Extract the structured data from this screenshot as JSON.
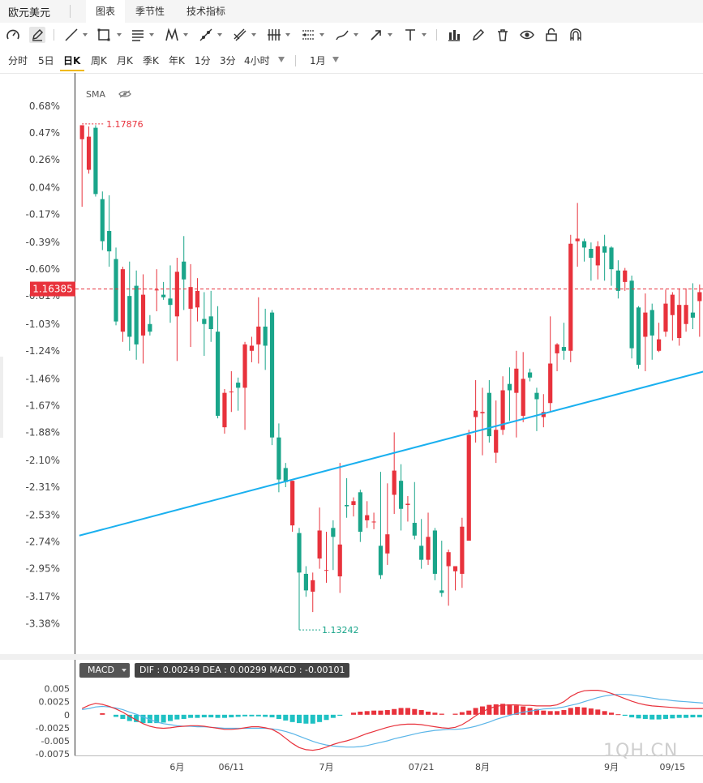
{
  "header": {
    "symbol": "欧元美元",
    "tabs": [
      {
        "label": "图表",
        "active": true
      },
      {
        "label": "季节性",
        "active": false
      },
      {
        "label": "技术指标",
        "active": false
      }
    ]
  },
  "toolbar": {
    "tools": [
      "gauge-icon",
      "pencil-icon",
      "line-icon",
      "rectangle-icon",
      "parallel-lines-icon",
      "pattern-icon",
      "trend-line-icon",
      "pitchfork-icon",
      "fibonacci-icon",
      "channel-icon",
      "brush-icon",
      "arrow-icon",
      "text-icon",
      "bar-chart-icon",
      "edit-icon",
      "trash-icon",
      "eye-icon",
      "lock-icon",
      "magnet-icon"
    ]
  },
  "periods": {
    "items": [
      "分时",
      "5日",
      "日K",
      "周K",
      "月K",
      "季K",
      "年K",
      "1分",
      "3分",
      "4小时"
    ],
    "active": "日K",
    "range": "1月"
  },
  "indicator": {
    "label": "SMA",
    "icon": "eye-hidden-icon"
  },
  "macd_panel": {
    "indicator": "MACD",
    "values_text": "DIF : 0.00249   DEA : 0.00299   MACD : -0.00101"
  },
  "watermark": "1QH.CN",
  "colors": {
    "up": "#e8323c",
    "down": "#1aa58a",
    "trend_line": "#1ab0ef",
    "dif": "#e8323c",
    "dea": "#5ab5e8",
    "current_price": "#e8323c"
  },
  "chart_data": [
    {
      "type": "candlestick",
      "y_tick_labels": [
        "0.68%",
        "0.47%",
        "0.26%",
        "0.04%",
        "-0.17%",
        "-0.39%",
        "-0.60%",
        "-0.81%",
        "-1.03%",
        "-1.24%",
        "-1.46%",
        "-1.67%",
        "-1.88%",
        "-2.10%",
        "-2.31%",
        "-2.53%",
        "-2.74%",
        "-2.95%",
        "-3.17%",
        "-3.38%"
      ],
      "y_ticks": [
        0.68,
        0.47,
        0.26,
        0.04,
        -0.17,
        -0.39,
        -0.6,
        -0.81,
        -1.03,
        -1.24,
        -1.46,
        -1.67,
        -1.88,
        -2.1,
        -2.31,
        -2.53,
        -2.74,
        -2.95,
        -3.17,
        -3.38
      ],
      "ylim": [
        -3.62,
        0.94
      ],
      "x_tick_labels": [
        "6月",
        "06/11",
        "7月",
        "07/21",
        "8月",
        "9月",
        "09/15"
      ],
      "x_tick_index": [
        14,
        22,
        36,
        50,
        59,
        78,
        87
      ],
      "n_slots": 92,
      "current_price": {
        "label": "1.16385",
        "value": -0.755
      },
      "max_marker": {
        "label": "1.17876",
        "index": 0,
        "value": 0.54
      },
      "min_marker": {
        "label": "1.13242",
        "index": 32,
        "value": -3.43
      },
      "trend_line": {
        "from": {
          "index": -0.4,
          "value": -2.69
        },
        "to": {
          "index": 91.8,
          "value": -1.4
        }
      },
      "candles": [
        [
          0.42,
          0.53,
          0.53,
          -0.11
        ],
        [
          0.18,
          0.44,
          0.52,
          0.15
        ],
        [
          0.51,
          -0.01,
          0.53,
          -0.03
        ],
        [
          -0.05,
          -0.38,
          0.01,
          -0.45
        ],
        [
          -0.3,
          -0.46,
          -0.02,
          -0.58
        ],
        [
          -0.52,
          -1.01,
          -0.43,
          -1.04
        ],
        [
          -1.09,
          -0.6,
          -0.58,
          -1.17
        ],
        [
          -0.81,
          -1.13,
          -0.54,
          -1.24
        ],
        [
          -0.73,
          -1.19,
          -0.61,
          -1.31
        ],
        [
          -1.12,
          -0.8,
          -0.64,
          -1.34
        ],
        [
          -1.03,
          -1.09,
          -0.96,
          -1.12
        ],
        [
          -0.76,
          -0.76,
          -0.6,
          -0.93
        ],
        [
          -0.8,
          -0.82,
          -0.7,
          -0.84
        ],
        [
          -0.83,
          -0.88,
          -0.57,
          -1.02
        ],
        [
          -0.97,
          -0.62,
          -0.51,
          -1.32
        ],
        [
          -0.54,
          -0.68,
          -0.34,
          -0.92
        ],
        [
          -0.91,
          -0.74,
          -0.56,
          -1.21
        ],
        [
          -0.9,
          -0.77,
          -0.67,
          -1.01
        ],
        [
          -0.99,
          -1.03,
          -0.78,
          -1.28
        ],
        [
          -0.97,
          -1.07,
          -0.77,
          -1.17
        ],
        [
          -1.09,
          -1.75,
          -0.89,
          -1.77
        ],
        [
          -1.84,
          -1.57,
          -1.54,
          -1.89
        ],
        [
          -1.56,
          -1.56,
          -1.4,
          -1.72
        ],
        [
          -1.49,
          -1.53,
          -1.45,
          -1.71
        ],
        [
          -1.53,
          -1.19,
          -1.17,
          -1.86
        ],
        [
          -1.24,
          -1.2,
          -1.13,
          -1.33
        ],
        [
          -1.19,
          -1.05,
          -0.82,
          -1.34
        ],
        [
          -1.05,
          -1.2,
          -0.91,
          -1.39
        ],
        [
          -0.94,
          -1.92,
          -0.92,
          -1.98
        ],
        [
          -1.92,
          -2.25,
          -1.81,
          -2.35
        ],
        [
          -2.16,
          -2.27,
          -2.12,
          -2.31
        ],
        [
          -2.61,
          -2.26,
          -2.26,
          -2.66
        ],
        [
          -2.67,
          -2.98,
          -2.63,
          -3.43
        ],
        [
          -2.99,
          -3.12,
          -2.93,
          -3.17
        ],
        [
          -3.13,
          -3.04,
          -2.98,
          -3.29
        ],
        [
          -2.87,
          -2.65,
          -2.47,
          -2.95
        ],
        [
          -2.96,
          -2.96,
          -2.66,
          -3.06
        ],
        [
          -2.63,
          -2.7,
          -2.57,
          -2.96
        ],
        [
          -3.01,
          -2.76,
          -2.12,
          -3.14
        ],
        [
          -2.45,
          -2.46,
          -2.24,
          -2.55
        ],
        [
          -2.45,
          -2.42,
          -2.39,
          -2.54
        ],
        [
          -2.35,
          -2.66,
          -2.33,
          -2.74
        ],
        [
          -2.57,
          -2.53,
          -2.42,
          -2.63
        ],
        [
          -2.58,
          -2.58,
          -2.51,
          -2.64
        ],
        [
          -2.77,
          -3.0,
          -2.19,
          -3.03
        ],
        [
          -2.83,
          -2.68,
          -2.28,
          -2.92
        ],
        [
          -2.37,
          -2.18,
          -1.88,
          -2.52
        ],
        [
          -2.26,
          -2.48,
          -2.13,
          -2.65
        ],
        [
          -2.45,
          -2.44,
          -2.38,
          -2.58
        ],
        [
          -2.59,
          -2.69,
          -2.27,
          -2.72
        ],
        [
          -2.77,
          -2.88,
          -2.56,
          -2.95
        ],
        [
          -2.88,
          -2.7,
          -2.51,
          -2.92
        ],
        [
          -2.65,
          -2.99,
          -2.63,
          -3.04
        ],
        [
          -3.12,
          -3.14,
          -2.73,
          -3.17
        ],
        [
          -2.93,
          -2.82,
          -2.8,
          -3.24
        ],
        [
          -2.97,
          -2.93,
          -2.95,
          -3.12
        ],
        [
          -2.99,
          -2.62,
          -2.55,
          -3.1
        ],
        [
          -2.73,
          -1.9,
          -1.86,
          -2.73
        ],
        [
          -1.76,
          -1.71,
          -1.47,
          -1.96
        ],
        [
          -1.73,
          -1.72,
          -1.53,
          -2.06
        ],
        [
          -1.57,
          -1.91,
          -1.47,
          -1.96
        ],
        [
          -2.04,
          -1.86,
          -1.63,
          -2.12
        ],
        [
          -1.86,
          -1.55,
          -1.44,
          -1.9
        ],
        [
          -1.5,
          -1.55,
          -1.37,
          -1.79
        ],
        [
          -1.57,
          -1.38,
          -1.24,
          -1.92
        ],
        [
          -1.75,
          -1.46,
          -1.25,
          -1.8
        ],
        [
          -1.41,
          -1.45,
          -1.38,
          -1.48
        ],
        [
          -1.57,
          -1.62,
          -1.53,
          -1.87
        ],
        [
          -1.76,
          -1.72,
          -1.58,
          -1.84
        ],
        [
          -1.65,
          -1.34,
          -0.97,
          -1.72
        ],
        [
          -1.26,
          -1.19,
          -1.18,
          -1.4
        ],
        [
          -1.21,
          -1.24,
          -1.02,
          -1.31
        ],
        [
          -1.24,
          -0.4,
          -0.33,
          -1.33
        ],
        [
          -0.38,
          -0.36,
          -0.08,
          -0.58
        ],
        [
          -0.38,
          -0.43,
          -0.36,
          -0.54
        ],
        [
          -0.44,
          -0.51,
          -0.39,
          -0.69
        ],
        [
          -0.57,
          -0.42,
          -0.38,
          -0.68
        ],
        [
          -0.42,
          -0.47,
          -0.33,
          -0.69
        ],
        [
          -0.43,
          -0.6,
          -0.42,
          -0.73
        ],
        [
          -0.61,
          -0.77,
          -0.53,
          -0.83
        ],
        [
          -0.7,
          -0.61,
          -0.59,
          -0.77
        ],
        [
          -0.69,
          -1.22,
          -0.65,
          -1.3
        ],
        [
          -0.9,
          -1.35,
          -0.89,
          -1.38
        ],
        [
          -1.13,
          -0.94,
          -0.79,
          -1.4
        ],
        [
          -0.92,
          -1.12,
          -0.87,
          -1.31
        ],
        [
          -1.24,
          -1.15,
          -1.02,
          -1.25
        ],
        [
          -1.09,
          -0.87,
          -0.76,
          -1.13
        ],
        [
          -0.96,
          -0.8,
          -0.78,
          -1.16
        ],
        [
          -1.14,
          -0.88,
          -0.75,
          -1.2
        ],
        [
          -1.03,
          -0.88,
          -0.75,
          -1.09
        ],
        [
          -0.94,
          -0.98,
          -0.71,
          -1.07
        ],
        [
          -0.85,
          -0.78,
          -0.72,
          -1.13
        ],
        [
          -0.79,
          -0.79,
          -0.58,
          -0.91
        ],
        [
          -0.85,
          -0.85,
          -0.75,
          -0.97
        ]
      ]
    },
    {
      "type": "bar+line",
      "indicator": "MACD",
      "y_tick_labels": [
        "0.005",
        "0.0025",
        "0",
        "-0.0025",
        "-0.005",
        "-0.0075"
      ],
      "y_ticks": [
        0.005,
        0.0025,
        0,
        -0.0025,
        -0.005,
        -0.0075
      ],
      "ylim": [
        -0.0078,
        0.0065
      ],
      "histogram": [
        0.0,
        0.0,
        0.0,
        0.0003,
        0.0,
        -0.0004,
        -0.0008,
        -0.0012,
        -0.0014,
        -0.0016,
        -0.0016,
        -0.0016,
        -0.0015,
        -0.0012,
        -0.0009,
        -0.0008,
        -0.0006,
        -0.0006,
        -0.0005,
        -0.0005,
        -0.0006,
        -0.0006,
        -0.0005,
        -0.0004,
        -0.0003,
        -0.0003,
        -0.0003,
        -0.0004,
        -0.0005,
        -0.0008,
        -0.0011,
        -0.0014,
        -0.0016,
        -0.0017,
        -0.0017,
        -0.0014,
        -0.001,
        -0.0006,
        -0.0002,
        0.0,
        0.0004,
        0.0006,
        0.0007,
        0.0008,
        0.0008,
        0.0009,
        0.0011,
        0.0013,
        0.0013,
        0.0011,
        0.0009,
        0.0006,
        0.0004,
        0.0002,
        0.0,
        0.0002,
        0.0005,
        0.0008,
        0.0013,
        0.0016,
        0.0019,
        0.002,
        0.0021,
        0.002,
        0.0018,
        0.0016,
        0.0013,
        0.0011,
        0.0008,
        0.0007,
        0.0007,
        0.0009,
        0.0013,
        0.0015,
        0.0014,
        0.0012,
        0.001,
        0.0007,
        0.0004,
        0.0001,
        -0.0002,
        -0.0005,
        -0.0007,
        -0.0008,
        -0.0009,
        -0.0009,
        -0.0008,
        -0.0007,
        -0.0006,
        -0.0006,
        -0.0005,
        -0.0005,
        -0.0004
      ],
      "dif": [
        0.0012,
        0.0018,
        0.0022,
        0.002,
        0.0016,
        0.0011,
        0.0005,
        -0.0003,
        -0.001,
        -0.0017,
        -0.0022,
        -0.0025,
        -0.0026,
        -0.0025,
        -0.0023,
        -0.0022,
        -0.0021,
        -0.0021,
        -0.0022,
        -0.0024,
        -0.0026,
        -0.0028,
        -0.0028,
        -0.0027,
        -0.0025,
        -0.0023,
        -0.0023,
        -0.0025,
        -0.0028,
        -0.0035,
        -0.0045,
        -0.0055,
        -0.0063,
        -0.0067,
        -0.0068,
        -0.0066,
        -0.0062,
        -0.0057,
        -0.0053,
        -0.005,
        -0.0046,
        -0.0041,
        -0.0036,
        -0.0032,
        -0.0028,
        -0.0024,
        -0.0021,
        -0.0019,
        -0.0018,
        -0.0018,
        -0.0019,
        -0.0021,
        -0.0023,
        -0.0025,
        -0.0026,
        -0.0024,
        -0.0019,
        -0.0011,
        -0.0002,
        0.0006,
        0.0012,
        0.0016,
        0.0018,
        0.0019,
        0.0019,
        0.0018,
        0.0018,
        0.0017,
        0.0017,
        0.0017,
        0.0019,
        0.0025,
        0.0035,
        0.0042,
        0.0046,
        0.0047,
        0.0047,
        0.0045,
        0.0041,
        0.0036,
        0.0031,
        0.0026,
        0.0022,
        0.0019,
        0.0017,
        0.0016,
        0.0015,
        0.0014,
        0.0013,
        0.0012,
        0.0012,
        0.0012,
        0.0012
      ],
      "dea": [
        0.001,
        0.0012,
        0.0015,
        0.0016,
        0.0015,
        0.0013,
        0.001,
        0.0005,
        0.0001,
        -0.0004,
        -0.0009,
        -0.0014,
        -0.0017,
        -0.0019,
        -0.0021,
        -0.0022,
        -0.0022,
        -0.0023,
        -0.0023,
        -0.0024,
        -0.0025,
        -0.0026,
        -0.0026,
        -0.0026,
        -0.0026,
        -0.0026,
        -0.0026,
        -0.0026,
        -0.0027,
        -0.0029,
        -0.0032,
        -0.0036,
        -0.0041,
        -0.0046,
        -0.0051,
        -0.0055,
        -0.0058,
        -0.006,
        -0.0061,
        -0.0062,
        -0.0062,
        -0.0061,
        -0.0059,
        -0.0056,
        -0.0053,
        -0.005,
        -0.0046,
        -0.0043,
        -0.004,
        -0.0037,
        -0.0034,
        -0.0032,
        -0.003,
        -0.0029,
        -0.0028,
        -0.0028,
        -0.0027,
        -0.0025,
        -0.0022,
        -0.0018,
        -0.0014,
        -0.0009,
        -0.0005,
        -0.0001,
        0.0002,
        0.0005,
        0.0007,
        0.0009,
        0.0011,
        0.0012,
        0.0013,
        0.0015,
        0.0018,
        0.0021,
        0.0025,
        0.0029,
        0.0033,
        0.0036,
        0.0038,
        0.0039,
        0.0039,
        0.0038,
        0.0036,
        0.0034,
        0.0032,
        0.003,
        0.0029,
        0.0027,
        0.0026,
        0.0025,
        0.0024,
        0.0023,
        0.0022
      ]
    }
  ]
}
